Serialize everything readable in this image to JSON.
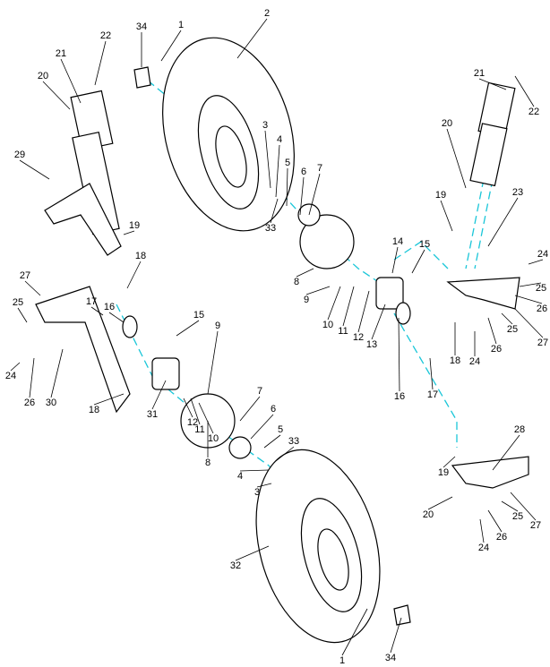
{
  "callouts": [
    "34",
    "1",
    "2",
    "22",
    "21",
    "20",
    "29",
    "19",
    "18",
    "27",
    "25",
    "17",
    "16",
    "15",
    "9",
    "24",
    "26",
    "30",
    "18",
    "31",
    "12",
    "11",
    "10",
    "8",
    "7",
    "6",
    "5",
    "33",
    "4",
    "3",
    "32",
    "1",
    "34",
    "19",
    "20",
    "24",
    "26",
    "25",
    "27",
    "28",
    "21",
    "22",
    "20",
    "19",
    "23",
    "24",
    "25",
    "26",
    "27",
    "25",
    "26",
    "24",
    "18",
    "17",
    "16",
    "13",
    "12",
    "11",
    "10",
    "9",
    "8",
    "14",
    "15",
    "7",
    "6",
    "5",
    "4",
    "3",
    "33"
  ]
}
